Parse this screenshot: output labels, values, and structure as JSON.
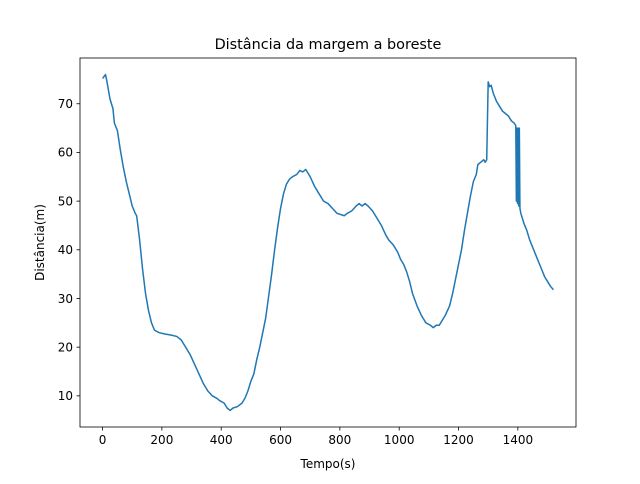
{
  "chart_data": {
    "type": "line",
    "title": "Distância da margem a boreste",
    "xlabel": "Tempo(s)",
    "ylabel": "Distância(m)",
    "xlim": [
      -76,
      1596
    ],
    "ylim": [
      3.6,
      79.4
    ],
    "grid": false,
    "legend": "none",
    "x_ticks": [
      0,
      200,
      400,
      600,
      800,
      1000,
      1200,
      1400
    ],
    "y_ticks": [
      10,
      20,
      30,
      40,
      50,
      60,
      70
    ],
    "series": [
      {
        "color": "#1f77b4",
        "points": [
          [
            0,
            75.2
          ],
          [
            10,
            76.0
          ],
          [
            15,
            74.5
          ],
          [
            25,
            71.0
          ],
          [
            35,
            69.0
          ],
          [
            40,
            66.0
          ],
          [
            50,
            64.5
          ],
          [
            60,
            60.5
          ],
          [
            70,
            57.0
          ],
          [
            80,
            54.0
          ],
          [
            90,
            51.5
          ],
          [
            100,
            49.0
          ],
          [
            110,
            47.5
          ],
          [
            115,
            47.0
          ],
          [
            125,
            42.0
          ],
          [
            135,
            36.0
          ],
          [
            145,
            31.0
          ],
          [
            155,
            27.5
          ],
          [
            165,
            25.0
          ],
          [
            175,
            23.5
          ],
          [
            190,
            23.0
          ],
          [
            210,
            22.7
          ],
          [
            230,
            22.5
          ],
          [
            250,
            22.2
          ],
          [
            265,
            21.5
          ],
          [
            280,
            20.0
          ],
          [
            295,
            18.5
          ],
          [
            310,
            16.5
          ],
          [
            325,
            14.5
          ],
          [
            340,
            12.5
          ],
          [
            355,
            11.0
          ],
          [
            370,
            10.0
          ],
          [
            385,
            9.5
          ],
          [
            395,
            9.0
          ],
          [
            410,
            8.5
          ],
          [
            420,
            7.5
          ],
          [
            430,
            7.0
          ],
          [
            440,
            7.5
          ],
          [
            455,
            7.8
          ],
          [
            470,
            8.5
          ],
          [
            480,
            9.5
          ],
          [
            490,
            11.0
          ],
          [
            500,
            13.0
          ],
          [
            510,
            14.5
          ],
          [
            520,
            17.5
          ],
          [
            530,
            20.0
          ],
          [
            540,
            23.0
          ],
          [
            550,
            26.0
          ],
          [
            560,
            30.5
          ],
          [
            570,
            35.0
          ],
          [
            580,
            40.0
          ],
          [
            590,
            44.5
          ],
          [
            600,
            48.5
          ],
          [
            610,
            51.5
          ],
          [
            620,
            53.5
          ],
          [
            630,
            54.5
          ],
          [
            640,
            55.0
          ],
          [
            655,
            55.5
          ],
          [
            665,
            56.3
          ],
          [
            675,
            56.0
          ],
          [
            685,
            56.5
          ],
          [
            700,
            55.0
          ],
          [
            715,
            53.0
          ],
          [
            730,
            51.5
          ],
          [
            745,
            50.0
          ],
          [
            760,
            49.5
          ],
          [
            775,
            48.5
          ],
          [
            790,
            47.5
          ],
          [
            805,
            47.2
          ],
          [
            815,
            47.0
          ],
          [
            825,
            47.5
          ],
          [
            840,
            48.0
          ],
          [
            855,
            49.0
          ],
          [
            865,
            49.5
          ],
          [
            875,
            49.0
          ],
          [
            885,
            49.5
          ],
          [
            895,
            49.0
          ],
          [
            910,
            48.0
          ],
          [
            925,
            46.5
          ],
          [
            940,
            45.0
          ],
          [
            955,
            43.0
          ],
          [
            965,
            42.0
          ],
          [
            980,
            41.0
          ],
          [
            995,
            39.5
          ],
          [
            1005,
            38.0
          ],
          [
            1015,
            37.0
          ],
          [
            1025,
            35.5
          ],
          [
            1035,
            33.5
          ],
          [
            1045,
            31.0
          ],
          [
            1060,
            28.5
          ],
          [
            1075,
            26.5
          ],
          [
            1090,
            25.0
          ],
          [
            1105,
            24.5
          ],
          [
            1115,
            24.0
          ],
          [
            1125,
            24.5
          ],
          [
            1135,
            24.5
          ],
          [
            1145,
            25.5
          ],
          [
            1155,
            26.5
          ],
          [
            1170,
            28.5
          ],
          [
            1180,
            31.0
          ],
          [
            1190,
            34.0
          ],
          [
            1200,
            37.0
          ],
          [
            1210,
            40.0
          ],
          [
            1220,
            44.0
          ],
          [
            1230,
            47.5
          ],
          [
            1240,
            51.0
          ],
          [
            1250,
            54.0
          ],
          [
            1260,
            55.5
          ],
          [
            1265,
            57.5
          ],
          [
            1275,
            58.0
          ],
          [
            1285,
            58.5
          ],
          [
            1290,
            58.0
          ],
          [
            1295,
            58.5
          ],
          [
            1300,
            74.5
          ],
          [
            1305,
            73.5
          ],
          [
            1310,
            73.8
          ],
          [
            1318,
            72.0
          ],
          [
            1328,
            70.5
          ],
          [
            1338,
            69.5
          ],
          [
            1348,
            68.5
          ],
          [
            1358,
            68.0
          ],
          [
            1368,
            67.5
          ],
          [
            1378,
            66.5
          ],
          [
            1388,
            66.0
          ],
          [
            1393,
            65.5
          ],
          [
            1395,
            50.0
          ],
          [
            1397,
            65.0
          ],
          [
            1399,
            49.5
          ],
          [
            1401,
            65.0
          ],
          [
            1403,
            49.0
          ],
          [
            1405,
            65.0
          ],
          [
            1407,
            48.5
          ],
          [
            1410,
            47.5
          ],
          [
            1420,
            45.5
          ],
          [
            1430,
            44.0
          ],
          [
            1440,
            42.0
          ],
          [
            1450,
            40.5
          ],
          [
            1460,
            39.0
          ],
          [
            1470,
            37.5
          ],
          [
            1480,
            36.0
          ],
          [
            1490,
            34.5
          ],
          [
            1500,
            33.5
          ],
          [
            1510,
            32.5
          ],
          [
            1520,
            31.8
          ]
        ]
      }
    ]
  }
}
